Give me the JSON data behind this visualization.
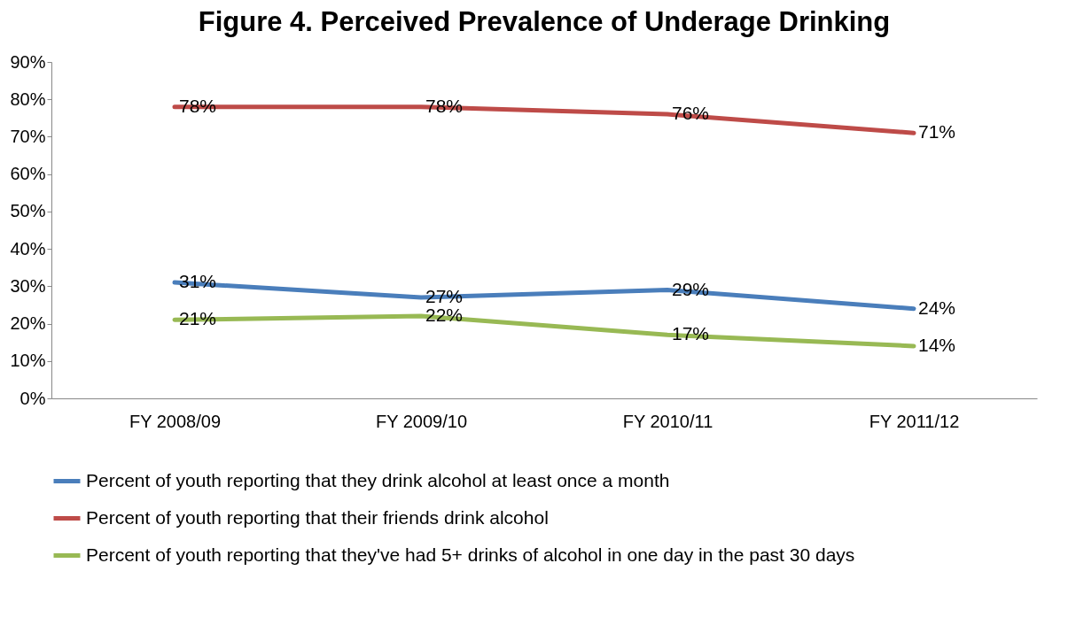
{
  "chart_data": {
    "type": "line",
    "title": "Figure 4. Perceived Prevalence of Underage Drinking",
    "categories": [
      "FY 2008/09",
      "FY 2009/10",
      "FY 2010/11",
      "FY 2011/12"
    ],
    "series": [
      {
        "name": "Percent of youth reporting that they drink alcohol at least once a month",
        "color": "#4a7ebb",
        "values": [
          31,
          27,
          29,
          24
        ],
        "value_labels": [
          "31%",
          "27%",
          "29%",
          "24%"
        ]
      },
      {
        "name": "Percent of youth reporting that their friends drink alcohol",
        "color": "#be4b48",
        "values": [
          78,
          78,
          76,
          71
        ],
        "value_labels": [
          "78%",
          "78%",
          "76%",
          "71%"
        ]
      },
      {
        "name": "Percent of youth reporting that they've had 5+ drinks of alcohol in one day in the past 30 days",
        "color": "#98b954",
        "values": [
          21,
          22,
          17,
          14
        ],
        "value_labels": [
          "21%",
          "22%",
          "17%",
          "14%"
        ]
      }
    ],
    "ylim": [
      0,
      90
    ],
    "yticks": [
      {
        "value": 0,
        "label": "0%"
      },
      {
        "value": 10,
        "label": "10%"
      },
      {
        "value": 20,
        "label": "20%"
      },
      {
        "value": 30,
        "label": "30%"
      },
      {
        "value": 40,
        "label": "40%"
      },
      {
        "value": 50,
        "label": "50%"
      },
      {
        "value": 60,
        "label": "60%"
      },
      {
        "value": 70,
        "label": "70%"
      },
      {
        "value": 80,
        "label": "80%"
      },
      {
        "value": 90,
        "label": "90%"
      }
    ],
    "legend": "bottom"
  }
}
